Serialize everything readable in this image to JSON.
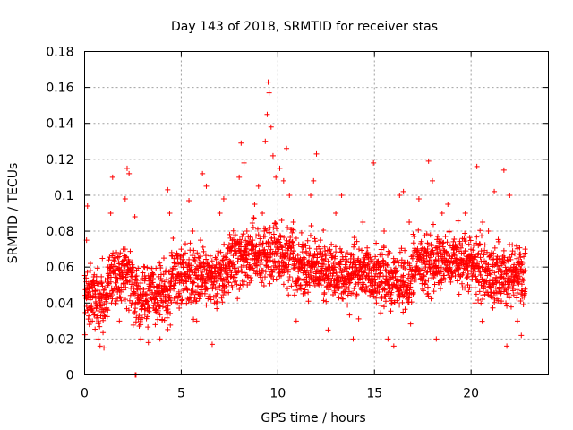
{
  "chart_data": {
    "type": "scatter",
    "title": "Day 143 of 2018, SRMTID for receiver stas",
    "xlabel": "GPS time / hours",
    "ylabel": "SRMTID / TECUs",
    "xlim": [
      0,
      24
    ],
    "ylim": [
      0,
      0.18
    ],
    "xticks": [
      0,
      5,
      10,
      15,
      20
    ],
    "xtick_labels": [
      "0",
      "5",
      "10",
      "15",
      "20"
    ],
    "yticks": [
      0,
      0.02,
      0.04,
      0.06,
      0.08,
      0.1,
      0.12,
      0.14,
      0.16,
      0.18
    ],
    "ytick_labels": [
      "0",
      "0.02",
      "0.04",
      "0.06",
      "0.08",
      "0.1",
      "0.12",
      "0.14",
      "0.16",
      "0.18"
    ],
    "grid": true,
    "marker": "plus",
    "color": "#ff0000",
    "x_data_extent": [
      0,
      22.8
    ],
    "zero_points_x": [
      2.62,
      2.66
    ],
    "series": [
      {
        "name": "SRMTID",
        "points": [
          [
            0.1,
            0.075
          ],
          [
            0.15,
            0.094
          ],
          [
            0.3,
            0.058
          ],
          [
            0.4,
            0.03
          ],
          [
            0.55,
            0.045
          ],
          [
            0.7,
            0.02
          ],
          [
            0.8,
            0.016
          ],
          [
            0.9,
            0.035
          ],
          [
            1.0,
            0.015
          ],
          [
            1.2,
            0.05
          ],
          [
            1.35,
            0.09
          ],
          [
            1.45,
            0.11
          ],
          [
            1.6,
            0.065
          ],
          [
            1.8,
            0.03
          ],
          [
            2.0,
            0.07
          ],
          [
            2.1,
            0.098
          ],
          [
            2.2,
            0.115
          ],
          [
            2.3,
            0.112
          ],
          [
            2.45,
            0.04
          ],
          [
            2.6,
            0.088
          ],
          [
            2.9,
            0.028
          ],
          [
            3.1,
            0.06
          ],
          [
            3.3,
            0.018
          ],
          [
            3.5,
            0.045
          ],
          [
            3.7,
            0.035
          ],
          [
            3.9,
            0.02
          ],
          [
            4.1,
            0.065
          ],
          [
            4.3,
            0.103
          ],
          [
            4.4,
            0.09
          ],
          [
            4.6,
            0.05
          ],
          [
            4.8,
            0.04
          ],
          [
            5.0,
            0.07
          ],
          [
            5.2,
            0.055
          ],
          [
            5.4,
            0.097
          ],
          [
            5.6,
            0.08
          ],
          [
            5.8,
            0.03
          ],
          [
            6.0,
            0.075
          ],
          [
            6.1,
            0.112
          ],
          [
            6.3,
            0.105
          ],
          [
            6.5,
            0.06
          ],
          [
            6.6,
            0.017
          ],
          [
            6.8,
            0.04
          ],
          [
            7.0,
            0.09
          ],
          [
            7.2,
            0.098
          ],
          [
            7.4,
            0.068
          ],
          [
            7.6,
            0.055
          ],
          [
            7.8,
            0.078
          ],
          [
            8.0,
            0.11
          ],
          [
            8.1,
            0.129
          ],
          [
            8.25,
            0.118
          ],
          [
            8.4,
            0.08
          ],
          [
            8.6,
            0.06
          ],
          [
            8.8,
            0.095
          ],
          [
            9.0,
            0.105
          ],
          [
            9.2,
            0.09
          ],
          [
            9.35,
            0.13
          ],
          [
            9.45,
            0.145
          ],
          [
            9.5,
            0.163
          ],
          [
            9.55,
            0.157
          ],
          [
            9.65,
            0.138
          ],
          [
            9.75,
            0.122
          ],
          [
            9.9,
            0.11
          ],
          [
            10.1,
            0.115
          ],
          [
            10.3,
            0.108
          ],
          [
            10.45,
            0.126
          ],
          [
            10.6,
            0.1
          ],
          [
            10.8,
            0.085
          ],
          [
            10.95,
            0.03
          ],
          [
            11.2,
            0.06
          ],
          [
            11.45,
            0.05
          ],
          [
            11.7,
            0.1
          ],
          [
            11.85,
            0.108
          ],
          [
            12.0,
            0.123
          ],
          [
            12.2,
            0.075
          ],
          [
            12.4,
            0.045
          ],
          [
            12.6,
            0.025
          ],
          [
            12.8,
            0.06
          ],
          [
            13.0,
            0.09
          ],
          [
            13.3,
            0.1
          ],
          [
            13.6,
            0.055
          ],
          [
            13.9,
            0.02
          ],
          [
            14.2,
            0.07
          ],
          [
            14.4,
            0.085
          ],
          [
            14.7,
            0.065
          ],
          [
            14.95,
            0.118
          ],
          [
            15.1,
            0.04
          ],
          [
            15.3,
            0.05
          ],
          [
            15.5,
            0.08
          ],
          [
            15.7,
            0.02
          ],
          [
            16.0,
            0.016
          ],
          [
            16.3,
            0.1
          ],
          [
            16.5,
            0.102
          ],
          [
            16.8,
            0.085
          ],
          [
            17.0,
            0.045
          ],
          [
            17.3,
            0.098
          ],
          [
            17.6,
            0.07
          ],
          [
            17.8,
            0.119
          ],
          [
            18.0,
            0.108
          ],
          [
            18.2,
            0.02
          ],
          [
            18.5,
            0.09
          ],
          [
            18.8,
            0.095
          ],
          [
            19.1,
            0.07
          ],
          [
            19.4,
            0.06
          ],
          [
            19.7,
            0.09
          ],
          [
            20.0,
            0.065
          ],
          [
            20.2,
            0.04
          ],
          [
            20.3,
            0.116
          ],
          [
            20.6,
            0.085
          ],
          [
            20.9,
            0.08
          ],
          [
            21.2,
            0.102
          ],
          [
            21.5,
            0.04
          ],
          [
            21.7,
            0.114
          ],
          [
            21.85,
            0.016
          ],
          [
            22.0,
            0.1
          ],
          [
            22.2,
            0.06
          ],
          [
            22.4,
            0.03
          ],
          [
            22.6,
            0.022
          ],
          [
            22.8,
            0.07
          ],
          [
            0.3,
            0.062
          ],
          [
            0.6,
            0.052
          ],
          [
            0.9,
            0.044
          ],
          [
            1.2,
            0.06
          ],
          [
            1.5,
            0.064
          ],
          [
            1.8,
            0.056
          ],
          [
            2.1,
            0.07
          ],
          [
            2.4,
            0.055
          ],
          [
            2.7,
            0.05
          ],
          [
            3.0,
            0.045
          ],
          [
            3.3,
            0.048
          ],
          [
            3.6,
            0.042
          ],
          [
            3.9,
            0.05
          ],
          [
            4.2,
            0.058
          ],
          [
            4.5,
            0.052
          ],
          [
            4.8,
            0.056
          ],
          [
            5.1,
            0.06
          ],
          [
            5.4,
            0.062
          ],
          [
            5.7,
            0.064
          ],
          [
            6.0,
            0.066
          ],
          [
            6.3,
            0.058
          ],
          [
            6.6,
            0.055
          ],
          [
            6.9,
            0.06
          ],
          [
            7.2,
            0.066
          ],
          [
            7.5,
            0.07
          ],
          [
            7.8,
            0.072
          ],
          [
            8.1,
            0.074
          ],
          [
            8.4,
            0.07
          ],
          [
            8.7,
            0.075
          ],
          [
            9.0,
            0.078
          ],
          [
            9.3,
            0.08
          ],
          [
            9.6,
            0.082
          ],
          [
            9.9,
            0.084
          ],
          [
            10.2,
            0.086
          ],
          [
            10.5,
            0.082
          ],
          [
            10.8,
            0.072
          ],
          [
            11.1,
            0.064
          ],
          [
            11.4,
            0.058
          ],
          [
            11.7,
            0.06
          ],
          [
            12.0,
            0.062
          ],
          [
            12.3,
            0.058
          ],
          [
            12.6,
            0.055
          ],
          [
            12.9,
            0.06
          ],
          [
            13.2,
            0.062
          ],
          [
            13.5,
            0.06
          ],
          [
            13.8,
            0.056
          ],
          [
            14.1,
            0.058
          ],
          [
            14.4,
            0.06
          ],
          [
            14.7,
            0.062
          ],
          [
            15.0,
            0.06
          ],
          [
            15.3,
            0.058
          ],
          [
            15.6,
            0.055
          ],
          [
            15.9,
            0.05
          ],
          [
            16.2,
            0.058
          ],
          [
            16.5,
            0.06
          ],
          [
            16.8,
            0.062
          ],
          [
            17.1,
            0.06
          ],
          [
            17.4,
            0.064
          ],
          [
            17.7,
            0.066
          ],
          [
            18.0,
            0.068
          ],
          [
            18.3,
            0.066
          ],
          [
            18.6,
            0.064
          ],
          [
            18.9,
            0.066
          ],
          [
            19.2,
            0.064
          ],
          [
            19.5,
            0.062
          ],
          [
            19.8,
            0.06
          ],
          [
            20.1,
            0.062
          ],
          [
            20.4,
            0.06
          ],
          [
            20.7,
            0.058
          ],
          [
            21.0,
            0.056
          ],
          [
            21.3,
            0.054
          ],
          [
            21.6,
            0.056
          ],
          [
            21.9,
            0.054
          ],
          [
            22.2,
            0.05
          ],
          [
            22.5,
            0.055
          ],
          [
            22.8,
            0.058
          ]
        ]
      }
    ]
  }
}
